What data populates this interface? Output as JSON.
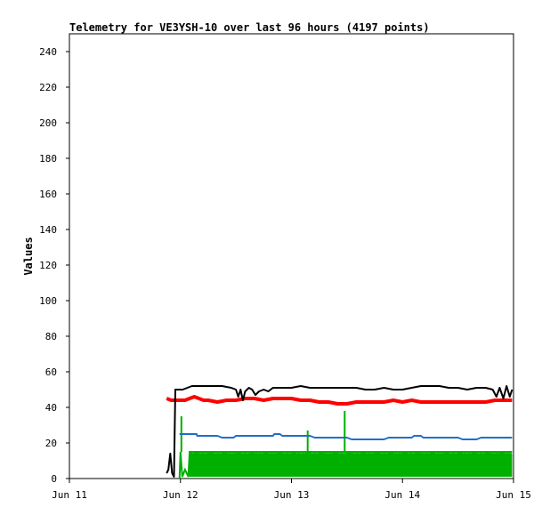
{
  "chart_data": {
    "type": "line",
    "title": "Telemetry for VE3YSH-10 over last 96 hours (4197 points)",
    "xlabel": "",
    "ylabel": "Values",
    "ylim": [
      0,
      250
    ],
    "yticks": [
      0,
      20,
      40,
      60,
      80,
      100,
      120,
      140,
      160,
      180,
      200,
      220,
      240
    ],
    "xlim": [
      0,
      96
    ],
    "xticks": [
      {
        "value": 0,
        "label": "Jun 11"
      },
      {
        "value": 24,
        "label": "Jun 12"
      },
      {
        "value": 48,
        "label": "Jun 13"
      },
      {
        "value": 72,
        "label": "Jun 14"
      },
      {
        "value": 96,
        "label": "Jun 15"
      }
    ],
    "grid": false,
    "legend": "none",
    "series": [
      {
        "color": "#000000",
        "style": "line",
        "points": [
          [
            21.0,
            3
          ],
          [
            21.4,
            5
          ],
          [
            21.8,
            14
          ],
          [
            22.2,
            3
          ],
          [
            22.6,
            1
          ],
          [
            22.9,
            50
          ],
          [
            23.5,
            50
          ],
          [
            24.5,
            50
          ],
          [
            25.5,
            51
          ],
          [
            26.5,
            52
          ],
          [
            27.5,
            52
          ],
          [
            29.0,
            52
          ],
          [
            31.0,
            52
          ],
          [
            33.0,
            52
          ],
          [
            35.0,
            51
          ],
          [
            36.0,
            50
          ],
          [
            36.5,
            46
          ],
          [
            37.0,
            50
          ],
          [
            37.5,
            44
          ],
          [
            38.0,
            49
          ],
          [
            38.8,
            51
          ],
          [
            39.5,
            50
          ],
          [
            40.2,
            47
          ],
          [
            41.0,
            49
          ],
          [
            42.0,
            50
          ],
          [
            43.0,
            49
          ],
          [
            44.0,
            51
          ],
          [
            46.0,
            51
          ],
          [
            48.0,
            51
          ],
          [
            50.0,
            52
          ],
          [
            52.0,
            51
          ],
          [
            55.0,
            51
          ],
          [
            58.0,
            51
          ],
          [
            60.0,
            51
          ],
          [
            62.0,
            51
          ],
          [
            64.0,
            50
          ],
          [
            66.0,
            50
          ],
          [
            68.0,
            51
          ],
          [
            70.0,
            50
          ],
          [
            72.0,
            50
          ],
          [
            74.0,
            51
          ],
          [
            76.0,
            52
          ],
          [
            78.0,
            52
          ],
          [
            80.0,
            52
          ],
          [
            82.0,
            51
          ],
          [
            84.0,
            51
          ],
          [
            86.0,
            50
          ],
          [
            88.0,
            51
          ],
          [
            90.0,
            51
          ],
          [
            91.5,
            50
          ],
          [
            92.3,
            46
          ],
          [
            93.0,
            51
          ],
          [
            93.8,
            45
          ],
          [
            94.5,
            52
          ],
          [
            95.2,
            46
          ],
          [
            95.7,
            50
          ]
        ]
      },
      {
        "color": "#ff0000",
        "style": "thick-line",
        "points": [
          [
            21.0,
            45
          ],
          [
            22.0,
            44
          ],
          [
            23.0,
            44
          ],
          [
            24.0,
            44
          ],
          [
            25.0,
            44
          ],
          [
            26.0,
            45
          ],
          [
            27.0,
            46
          ],
          [
            28.0,
            45
          ],
          [
            29.0,
            44
          ],
          [
            30.0,
            44
          ],
          [
            32.0,
            43
          ],
          [
            34.0,
            44
          ],
          [
            36.0,
            44
          ],
          [
            38.0,
            45
          ],
          [
            40.0,
            45
          ],
          [
            42.0,
            44
          ],
          [
            44.0,
            45
          ],
          [
            46.0,
            45
          ],
          [
            48.0,
            45
          ],
          [
            50.0,
            44
          ],
          [
            52.0,
            44
          ],
          [
            54.0,
            43
          ],
          [
            56.0,
            43
          ],
          [
            58.0,
            42
          ],
          [
            60.0,
            42
          ],
          [
            62.0,
            43
          ],
          [
            64.0,
            43
          ],
          [
            66.0,
            43
          ],
          [
            68.0,
            43
          ],
          [
            70.0,
            44
          ],
          [
            72.0,
            43
          ],
          [
            74.0,
            44
          ],
          [
            76.0,
            43
          ],
          [
            78.0,
            43
          ],
          [
            80.0,
            43
          ],
          [
            82.0,
            43
          ],
          [
            84.0,
            43
          ],
          [
            86.0,
            43
          ],
          [
            88.0,
            43
          ],
          [
            90.0,
            43
          ],
          [
            92.0,
            44
          ],
          [
            94.0,
            44
          ],
          [
            95.7,
            44
          ]
        ]
      },
      {
        "color": "#1f6fc9",
        "style": "line",
        "points": [
          [
            23.8,
            25
          ],
          [
            27.5,
            25
          ],
          [
            27.6,
            24
          ],
          [
            32.0,
            24
          ],
          [
            33.0,
            23
          ],
          [
            34.0,
            23
          ],
          [
            35.5,
            23
          ],
          [
            36.0,
            24
          ],
          [
            44.0,
            24
          ],
          [
            44.3,
            25
          ],
          [
            45.5,
            25
          ],
          [
            46.0,
            24
          ],
          [
            52.0,
            24
          ],
          [
            53.0,
            23
          ],
          [
            60.0,
            23
          ],
          [
            61.0,
            22
          ],
          [
            68.0,
            22
          ],
          [
            69.0,
            23
          ],
          [
            74.0,
            23
          ],
          [
            74.5,
            24
          ],
          [
            76.0,
            24
          ],
          [
            76.5,
            23
          ],
          [
            84.0,
            23
          ],
          [
            85.0,
            22
          ],
          [
            88.0,
            22
          ],
          [
            89.0,
            23
          ],
          [
            95.7,
            23
          ]
        ]
      },
      {
        "color": "#00b000",
        "style": "band",
        "band": {
          "x_start": 24.0,
          "x_end": 95.7,
          "low": 1,
          "high": 15
        },
        "spikes": [
          [
            24.2,
            35
          ],
          [
            51.5,
            27
          ],
          [
            59.5,
            38
          ]
        ],
        "points": [
          [
            23.8,
            0
          ],
          [
            24.0,
            15
          ],
          [
            24.4,
            1
          ],
          [
            25.0,
            5
          ],
          [
            25.7,
            1
          ],
          [
            26.0,
            15
          ],
          [
            95.7,
            15
          ]
        ]
      }
    ]
  }
}
